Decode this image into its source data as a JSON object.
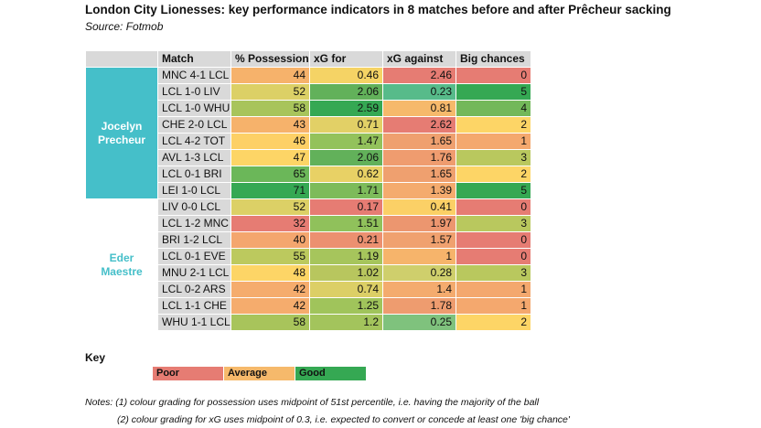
{
  "title": "London City Lionesses: key performance indicators in 8 matches before and after Prêcheur sacking",
  "source": "Source: Fotmob",
  "chart_data": {
    "type": "table",
    "columns": [
      "",
      "Match",
      "% Possession",
      "xG for",
      "xG against",
      "Big chances"
    ],
    "groups": [
      {
        "name": "Jocelyn Precheur",
        "rows": 8
      },
      {
        "name": "Eder Maestre",
        "rows": 8
      }
    ],
    "rows": [
      {
        "match": "MNC 4-1 LCL",
        "values": [
          "44",
          "0.46",
          "2.46",
          "0"
        ],
        "colors": [
          "#f6b26b",
          "#f5d365",
          "#e67c73",
          "#e67c73"
        ]
      },
      {
        "match": "LCL 1-0 LIV",
        "values": [
          "52",
          "2.06",
          "0.23",
          "5"
        ],
        "colors": [
          "#dcd066",
          "#62b15a",
          "#57bb8a",
          "#35a853"
        ]
      },
      {
        "match": "LCL 1-0 WHU",
        "values": [
          "58",
          "2.59",
          "0.81",
          "4"
        ],
        "colors": [
          "#a8c45b",
          "#35a853",
          "#f6b96b",
          "#73b85a"
        ]
      },
      {
        "match": "CHE 2-0 LCL",
        "values": [
          "43",
          "0.71",
          "2.62",
          "2"
        ],
        "colors": [
          "#f6b26b",
          "#e2d066",
          "#e67c73",
          "#fdd566"
        ]
      },
      {
        "match": "LCL 4-2 TOT",
        "values": [
          "46",
          "1.47",
          "1.65",
          "1"
        ],
        "colors": [
          "#fdd066",
          "#93c25b",
          "#efa06f",
          "#f4a86e"
        ]
      },
      {
        "match": "AVL 1-3 LCL",
        "values": [
          "47",
          "2.06",
          "1.76",
          "3"
        ],
        "colors": [
          "#fdd566",
          "#62b15a",
          "#ef9c6f",
          "#b9c85e"
        ]
      },
      {
        "match": "LCL 0-1 BRI",
        "values": [
          "65",
          "0.62",
          "1.65",
          "2"
        ],
        "colors": [
          "#6bb759",
          "#e8d165",
          "#efa06f",
          "#fdd566"
        ]
      },
      {
        "match": "LEI 1-0 LCL",
        "values": [
          "71",
          "1.71",
          "1.39",
          "5"
        ],
        "colors": [
          "#35a853",
          "#7dbb5a",
          "#f4ab6e",
          "#35a853"
        ]
      },
      {
        "match": "LIV 0-0 LCL",
        "values": [
          "52",
          "0.17",
          "0.41",
          "0"
        ],
        "colors": [
          "#dcd066",
          "#e67c73",
          "#fbd066",
          "#e67c73"
        ]
      },
      {
        "match": "LCL 1-2 MNC",
        "values": [
          "32",
          "1.51",
          "1.97",
          "3"
        ],
        "colors": [
          "#e67c73",
          "#90c15b",
          "#ec966f",
          "#b9c85e"
        ]
      },
      {
        "match": "BRI 1-2 LCL",
        "values": [
          "40",
          "0.21",
          "1.57",
          "0"
        ],
        "colors": [
          "#f4a66e",
          "#ec9070",
          "#f0a16f",
          "#e67c73"
        ]
      },
      {
        "match": "LCL 0-1 EVE",
        "values": [
          "55",
          "1.19",
          "1",
          "0"
        ],
        "colors": [
          "#bcc95e",
          "#a6c55c",
          "#f6b46b",
          "#e67c73"
        ]
      },
      {
        "match": "MNU 2-1 LCL",
        "values": [
          "48",
          "1.02",
          "0.28",
          "3"
        ],
        "colors": [
          "#fdd566",
          "#b8c65e",
          "#cfcf6c",
          "#b9c85e"
        ]
      },
      {
        "match": "LCL 0-2 ARS",
        "values": [
          "42",
          "0.74",
          "1.4",
          "1"
        ],
        "colors": [
          "#f5ac6d",
          "#dccf66",
          "#f4ab6e",
          "#f4a86e"
        ]
      },
      {
        "match": "LCL 1-1 CHE",
        "values": [
          "42",
          "1.25",
          "1.78",
          "1"
        ],
        "colors": [
          "#f5ac6d",
          "#a0c45b",
          "#ee9c6f",
          "#f4a86e"
        ]
      },
      {
        "match": "WHU 1-1 LCL",
        "values": [
          "58",
          "1.2",
          "0.25",
          "2"
        ],
        "colors": [
          "#a8c45b",
          "#a3c45c",
          "#7fc27d",
          "#fdd566"
        ]
      }
    ]
  },
  "key": {
    "title": "Key",
    "items": [
      {
        "label": "Poor",
        "color": "#e67c73"
      },
      {
        "label": "Average",
        "color": "#f6b96b"
      },
      {
        "label": "Good",
        "color": "#35a853"
      }
    ]
  },
  "notes": [
    "Notes: (1) colour grading for possession uses midpoint of 51st percentile, i.e. having the majority of the ball",
    "(2) colour grading for xG uses midpoint of 0.3, i.e. expected to convert or concede at least one 'big chance'"
  ],
  "group_color": "#45bfc9"
}
